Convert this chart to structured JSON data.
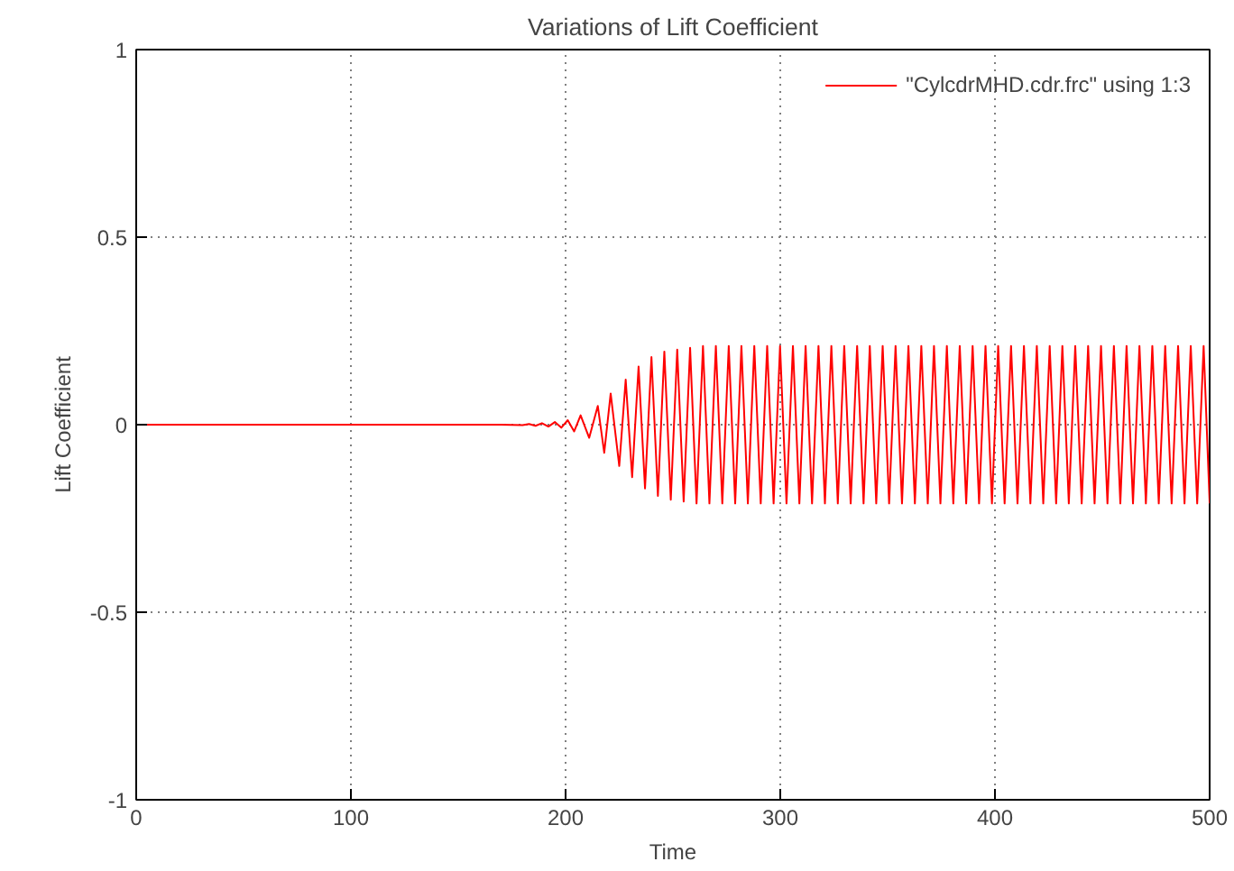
{
  "chart_data": {
    "type": "line",
    "title": "Variations of Lift Coefficient",
    "xlabel": "Time",
    "ylabel": "Lift Coefficient",
    "xlim": [
      0,
      500
    ],
    "ylim": [
      -1,
      1
    ],
    "xticks": [
      0,
      100,
      200,
      300,
      400,
      500
    ],
    "yticks": [
      -1,
      -0.5,
      0,
      0.5,
      1
    ],
    "grid": true,
    "legend": "top right",
    "line_style": "solid",
    "marker": "none",
    "series": [
      {
        "name": "\"CylcdrMHD.cdr.frc\" using 1:3",
        "color": "#ff0000",
        "x": [
          0,
          170,
          180,
          183,
          186,
          189,
          192,
          195,
          198,
          201,
          204,
          207,
          211,
          215,
          218,
          221,
          225,
          228,
          231,
          234,
          237,
          240,
          243,
          246,
          249,
          252,
          255,
          258,
          261,
          264.0,
          267.0,
          270.0,
          273.0,
          276.0,
          279.0,
          281.9,
          284.9,
          287.9,
          290.9,
          293.9,
          296.9,
          299.9,
          302.9,
          305.9,
          308.9,
          311.8,
          314.8,
          317.8,
          320.8,
          323.8,
          326.8,
          329.8,
          332.8,
          335.8,
          338.8,
          341.7,
          344.7,
          347.7,
          350.7,
          353.7,
          356.7,
          359.7,
          362.7,
          365.7,
          368.7,
          371.6,
          374.6,
          377.6,
          380.6,
          383.6,
          386.6,
          389.6,
          392.6,
          395.6,
          398.6,
          401.5,
          404.5,
          407.5,
          410.5,
          413.5,
          416.5,
          419.5,
          422.5,
          425.5,
          428.5,
          431.4,
          434.4,
          437.4,
          440.4,
          443.4,
          446.4,
          449.4,
          452.4,
          455.4,
          458.4,
          461.3,
          464.3,
          467.3,
          470.3,
          473.3,
          476.3,
          479.3,
          482.3,
          485.3,
          488.3,
          491.2,
          494.2,
          497.2,
          500.0
        ],
        "values": [
          0,
          0,
          -0.001,
          0.002,
          -0.003,
          0.004,
          -0.005,
          0.007,
          -0.008,
          0.012,
          -0.018,
          0.025,
          -0.035,
          0.05,
          -0.075,
          0.083,
          -0.11,
          0.12,
          -0.14,
          0.155,
          -0.17,
          0.18,
          -0.19,
          0.195,
          -0.2,
          0.2,
          -0.205,
          0.205,
          -0.21,
          0.21,
          -0.21,
          0.21,
          -0.21,
          0.21,
          -0.21,
          0.21,
          -0.21,
          0.21,
          -0.21,
          0.21,
          -0.21,
          0.21,
          -0.21,
          0.21,
          -0.21,
          0.21,
          -0.21,
          0.21,
          -0.21,
          0.21,
          -0.21,
          0.21,
          -0.21,
          0.21,
          -0.21,
          0.21,
          -0.21,
          0.21,
          -0.21,
          0.21,
          -0.21,
          0.21,
          -0.21,
          0.21,
          -0.21,
          0.21,
          -0.21,
          0.21,
          -0.21,
          0.21,
          -0.21,
          0.21,
          -0.21,
          0.21,
          -0.21,
          0.21,
          -0.21,
          0.21,
          -0.21,
          0.21,
          -0.21,
          0.21,
          -0.21,
          0.21,
          -0.21,
          0.21,
          -0.21,
          0.21,
          -0.21,
          0.21,
          -0.21,
          0.21,
          -0.21,
          0.21,
          -0.21,
          0.21,
          -0.21,
          0.21,
          -0.21,
          0.21,
          -0.21,
          0.21,
          -0.21,
          0.21,
          -0.21,
          0.21,
          -0.21,
          0.21,
          -0.21
        ]
      }
    ]
  }
}
